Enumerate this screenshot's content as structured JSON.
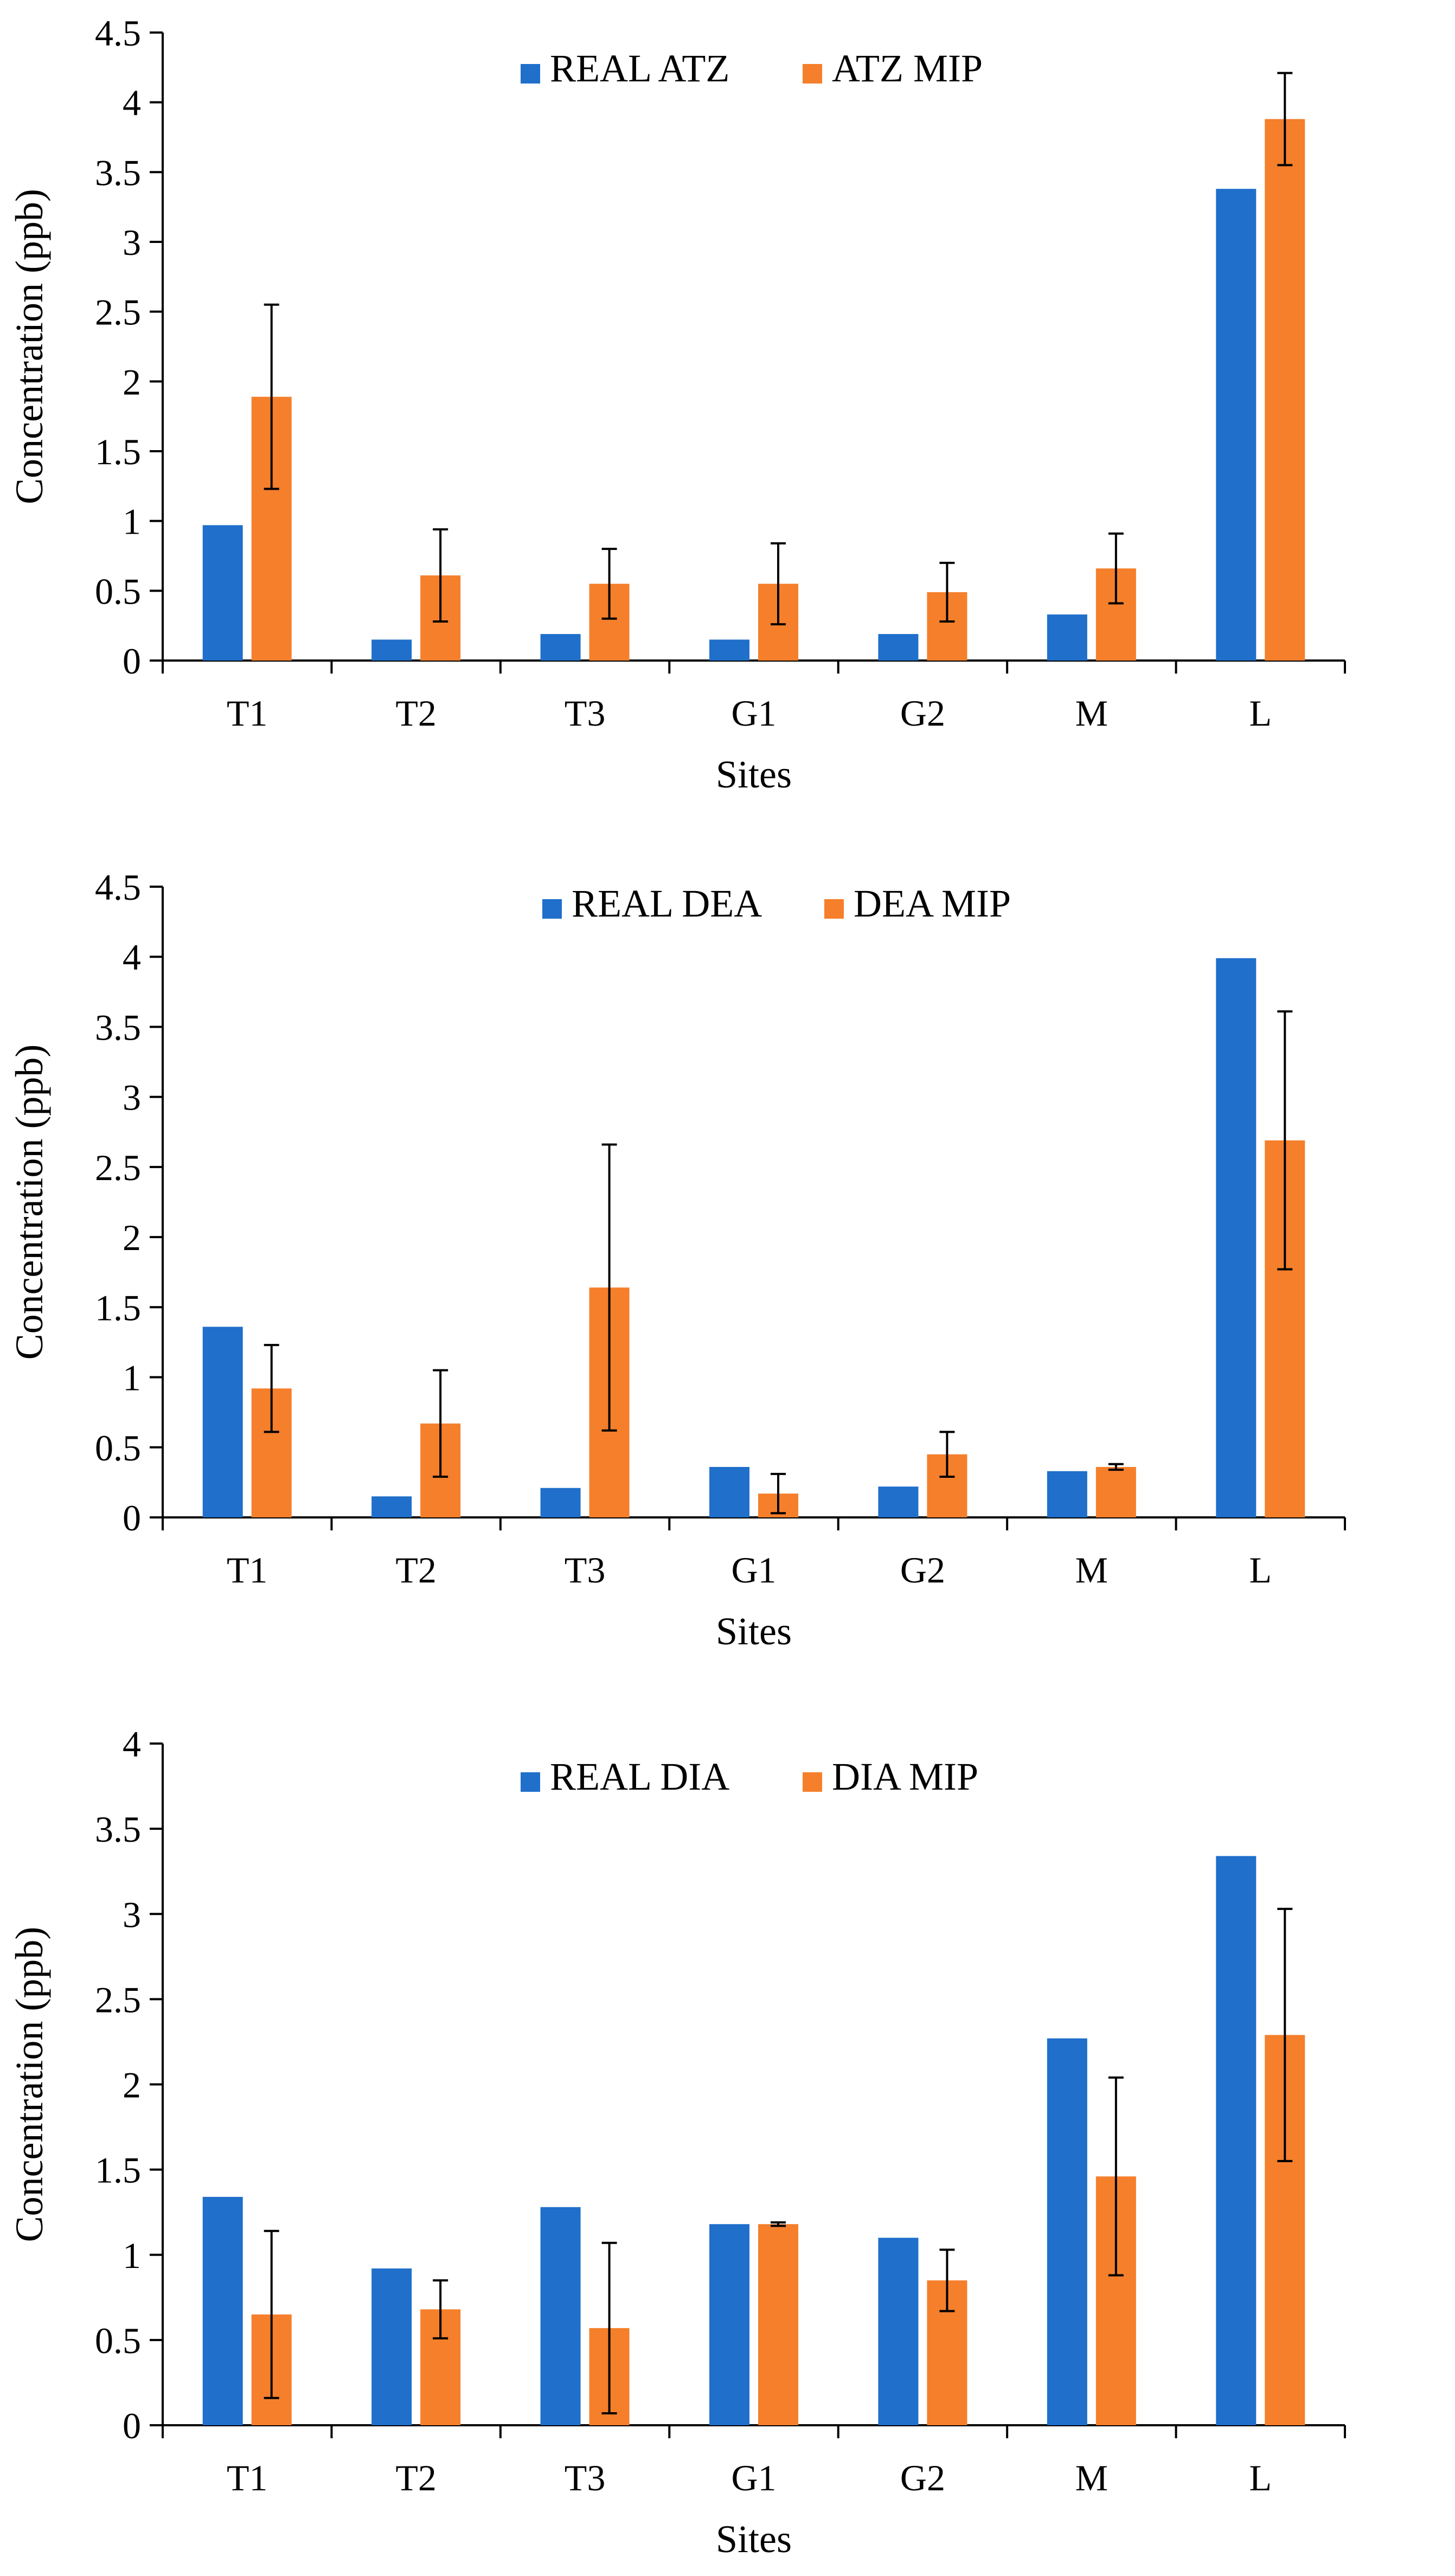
{
  "chart_data": [
    {
      "type": "bar",
      "title": "",
      "xlabel": "Sites",
      "ylabel": "Concentration (ppb)",
      "categories": [
        "T1",
        "T2",
        "T3",
        "G1",
        "G2",
        "M",
        "L"
      ],
      "ylim": [
        0,
        4.5
      ],
      "yticks": [
        "0",
        "0.5",
        "1",
        "1.5",
        "2",
        "2.5",
        "3",
        "3.5",
        "4",
        "4.5"
      ],
      "legend": "top-center",
      "grid": false,
      "series": [
        {
          "name": "REAL ATZ",
          "color": "#1F6FCB",
          "values": [
            0.97,
            0.15,
            0.19,
            0.15,
            0.19,
            0.33,
            3.38
          ]
        },
        {
          "name": "ATZ MIP",
          "color": "#F57F2B",
          "values": [
            1.89,
            0.61,
            0.55,
            0.55,
            0.49,
            0.66,
            3.88
          ],
          "errors": [
            0.66,
            0.33,
            0.25,
            0.29,
            0.21,
            0.25,
            0.33
          ]
        }
      ]
    },
    {
      "type": "bar",
      "title": "",
      "xlabel": "Sites",
      "ylabel": "Concentration (ppb)",
      "categories": [
        "T1",
        "T2",
        "T3",
        "G1",
        "G2",
        "M",
        "L"
      ],
      "ylim": [
        0,
        4.5
      ],
      "yticks": [
        "0",
        "0.5",
        "1",
        "1.5",
        "2",
        "2.5",
        "3",
        "3.5",
        "4",
        "4.5"
      ],
      "legend": "top-center",
      "grid": false,
      "series": [
        {
          "name": "REAL DEA",
          "color": "#1F6FCB",
          "values": [
            1.36,
            0.15,
            0.21,
            0.36,
            0.22,
            0.33,
            3.99
          ]
        },
        {
          "name": "DEA MIP",
          "color": "#F57F2B",
          "values": [
            0.92,
            0.67,
            1.64,
            0.17,
            0.45,
            0.36,
            2.69
          ],
          "errors": [
            0.31,
            0.38,
            1.02,
            0.14,
            0.16,
            0.02,
            0.92
          ]
        }
      ]
    },
    {
      "type": "bar",
      "title": "",
      "xlabel": "Sites",
      "ylabel": "Concentration (ppb)",
      "categories": [
        "T1",
        "T2",
        "T3",
        "G1",
        "G2",
        "M",
        "L"
      ],
      "ylim": [
        0,
        4
      ],
      "yticks": [
        "0",
        "0.5",
        "1",
        "1.5",
        "2",
        "2.5",
        "3",
        "3.5",
        "4"
      ],
      "legend": "top-center",
      "grid": false,
      "series": [
        {
          "name": "REAL DIA",
          "color": "#1F6FCB",
          "values": [
            1.34,
            0.92,
            1.28,
            1.18,
            1.1,
            2.27,
            3.34
          ]
        },
        {
          "name": "DIA MIP",
          "color": "#F57F2B",
          "values": [
            0.65,
            0.68,
            0.57,
            1.18,
            0.85,
            1.46,
            2.29
          ],
          "errors": [
            0.49,
            0.17,
            0.5,
            0.01,
            0.18,
            0.58,
            0.74
          ]
        }
      ]
    }
  ]
}
